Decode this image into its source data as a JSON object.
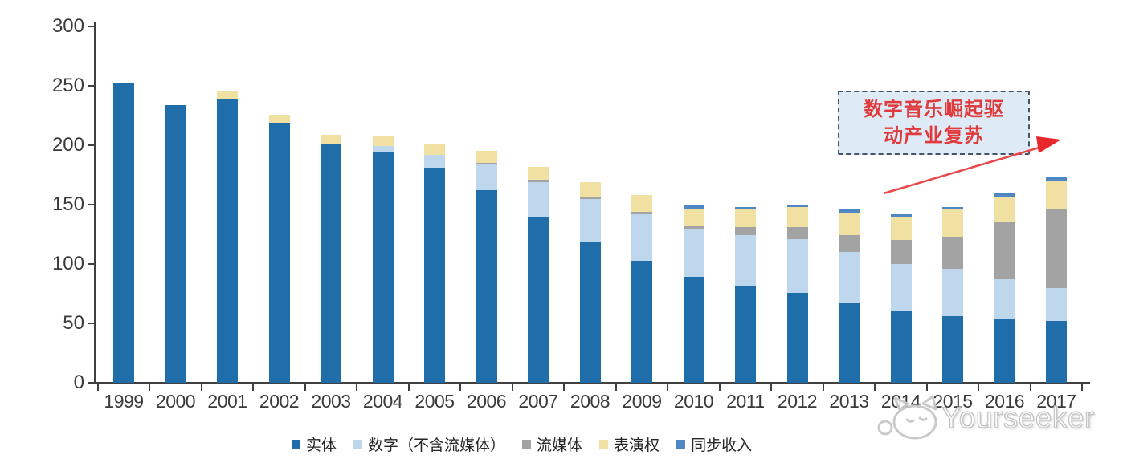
{
  "chart_data": {
    "type": "bar",
    "stacked": true,
    "title": "",
    "xlabel": "",
    "ylabel": "",
    "ylim": [
      0,
      300
    ],
    "y_ticks": [
      0,
      50,
      100,
      150,
      200,
      250,
      300
    ],
    "grid": false,
    "legend_position": "bottom",
    "categories": [
      "1999",
      "2000",
      "2001",
      "2002",
      "2003",
      "2004",
      "2005",
      "2006",
      "2007",
      "2008",
      "2009",
      "2010",
      "2011",
      "2012",
      "2013",
      "2014",
      "2015",
      "2016",
      "2017"
    ],
    "series": [
      {
        "name": "实体",
        "color": "#1F6DA9",
        "values": [
          252,
          234,
          239,
          219,
          201,
          194,
          181,
          162,
          140,
          118,
          103,
          89,
          81,
          76,
          67,
          60,
          56,
          54,
          52
        ]
      },
      {
        "name": "数字（不含流媒体）",
        "color": "#BFD7EC",
        "values": [
          0,
          0,
          0,
          0,
          0,
          5,
          11,
          22,
          29,
          37,
          39,
          40,
          43,
          45,
          43,
          40,
          40,
          33,
          28
        ]
      },
      {
        "name": "流媒体",
        "color": "#A3A3A3",
        "values": [
          0,
          0,
          0,
          0,
          0,
          0,
          0,
          1,
          2,
          2,
          2,
          3,
          7,
          10,
          14,
          20,
          27,
          48,
          66
        ]
      },
      {
        "name": "表演权",
        "color": "#F0E0A2",
        "values": [
          0,
          0,
          6,
          7,
          8,
          9,
          9,
          10,
          11,
          12,
          14,
          14,
          15,
          17,
          19,
          20,
          23,
          21,
          24
        ]
      },
      {
        "name": "同步收入",
        "color": "#4E87C4",
        "values": [
          0,
          0,
          0,
          0,
          0,
          0,
          0,
          0,
          0,
          0,
          0,
          3,
          2,
          2,
          3,
          2,
          2,
          4,
          3
        ]
      }
    ]
  },
  "annotation": {
    "text": "数字音乐崛起驱动产业复苏",
    "lines": [
      "数字音乐崛起驱",
      "动产业复苏"
    ],
    "box_fill": "#DEEAF6",
    "border_color": "#44546A",
    "text_color": "#E03A3C",
    "arrow_color": "#E8474A"
  },
  "watermark": {
    "text": "Yourseeker",
    "logo": "cat-logo-icon"
  },
  "axis_color": "#404040"
}
